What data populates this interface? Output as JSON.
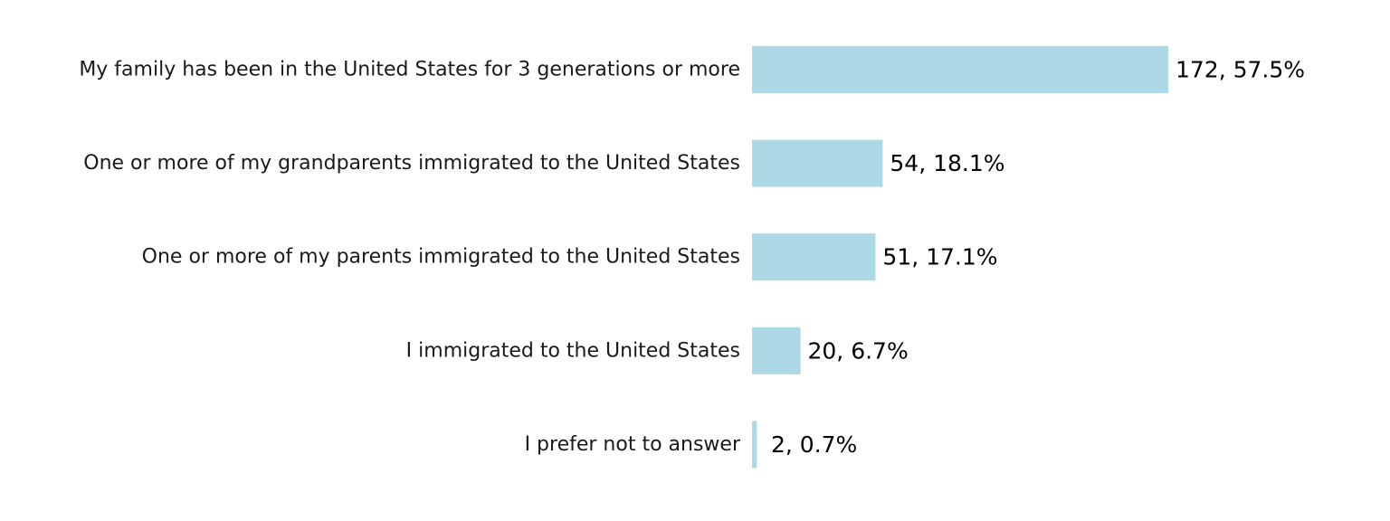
{
  "chart_data": {
    "type": "bar",
    "orientation": "horizontal",
    "categories": [
      "My family has been in the United States for 3 generations or more",
      "One or more of my grandparents immigrated to the United States",
      "One or more of my parents immigrated to the United States",
      "I immigrated to the United States",
      "I prefer not to answer"
    ],
    "values": [
      172,
      54,
      51,
      20,
      2
    ],
    "value_labels": [
      "172, 57.5%",
      "54, 18.1%",
      "51, 17.1%",
      "20, 6.7%",
      "2, 0.7%"
    ],
    "xlim": [
      0,
      172
    ],
    "bar_color": "#add8e6",
    "grid": false,
    "axes_visible": false
  }
}
